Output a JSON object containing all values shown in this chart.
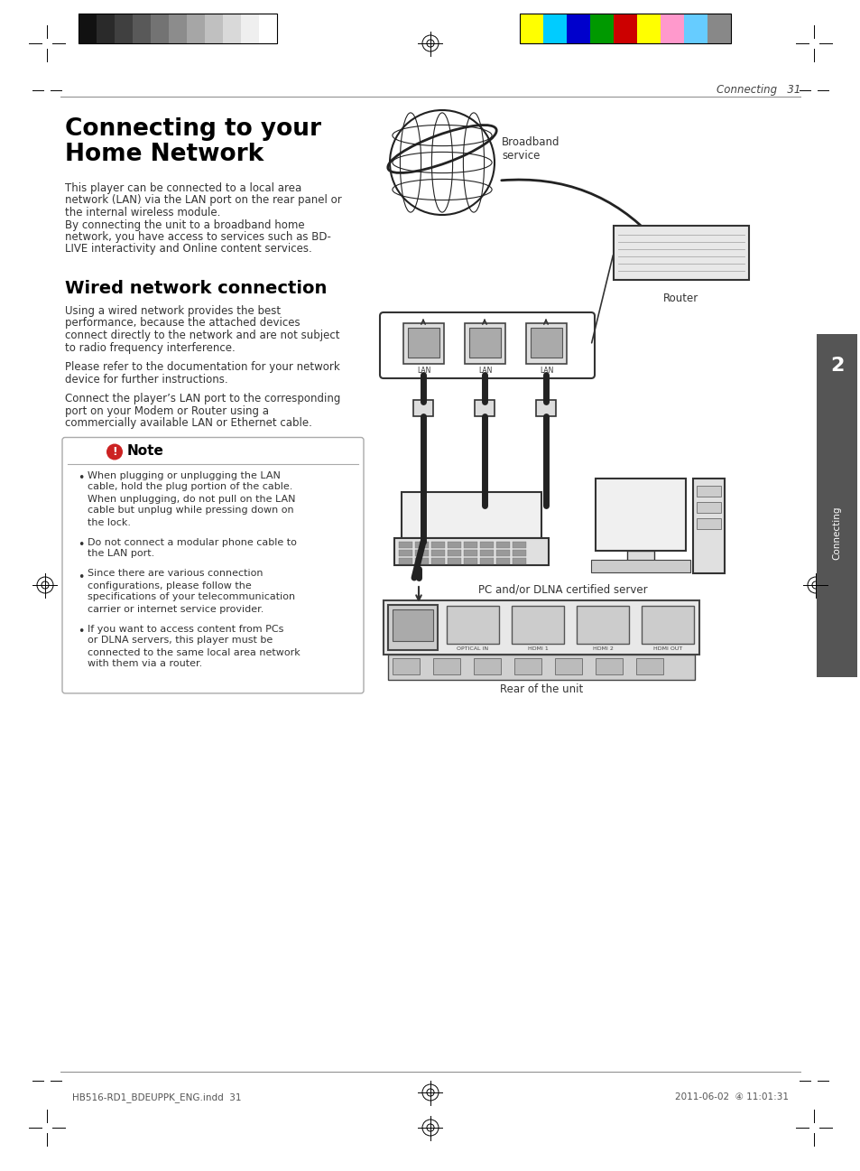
{
  "page_bg": "#ffffff",
  "header_text": "Connecting   31",
  "header_text_color": "#444444",
  "title_line1": "Connecting to your",
  "title_line2": "Home Network",
  "title_color": "#000000",
  "title_fontsize": 19,
  "body_text_color": "#333333",
  "body_fontsize": 8.5,
  "intro_text": "This player can be connected to a local area\nnetwork (LAN) via the LAN port on the rear panel or\nthe internal wireless module.\nBy connecting the unit to a broadband home\nnetwork, you have access to services such as BD-\nLIVE interactivity and Online content services.",
  "section_title": "Wired network connection",
  "section_title_color": "#000000",
  "section_title_fontsize": 14,
  "section_body1": "Using a wired network provides the best\nperformance, because the attached devices\nconnect directly to the network and are not subject\nto radio frequency interference.",
  "section_body2": "Please refer to the documentation for your network\ndevice for further instructions.",
  "section_body3": "Connect the player’s LAN port to the corresponding\nport on your Modem or Router using a\ncommercially available LAN or Ethernet cable.",
  "note_title": "Note",
  "note_bullets": [
    "When plugging or unplugging the LAN\ncable, hold the plug portion of the cable.\nWhen unplugging, do not pull on the LAN\ncable but unplug while pressing down on\nthe lock.",
    "Do not connect a modular phone cable to\nthe LAN port.",
    "Since there are various connection\nconfigurations, please follow the\nspecifications of your telecommunication\ncarrier or internet service provider.",
    "If you want to access content from PCs\nor DLNA servers, this player must be\nconnected to the same local area network\nwith them via a router."
  ],
  "diagram_labels": {
    "broadband": "Broadband\nservice",
    "router": "Router",
    "pc": "PC and/or DLNA certified server",
    "rear": "Rear of the unit"
  },
  "sidebar_color": "#555555",
  "sidebar_text": "Connecting",
  "sidebar_number": "2",
  "footer_left_text": "HB516-RD1_BDEUPPK_ENG.indd  31",
  "footer_right_text": "2011-06-02  ④ 11:01:31",
  "color_bars_left": [
    "#111111",
    "#2a2a2a",
    "#404040",
    "#595959",
    "#737373",
    "#8c8c8c",
    "#a6a6a6",
    "#c0c0c0",
    "#d9d9d9",
    "#efefef",
    "#ffffff"
  ],
  "color_bars_right": [
    "#ffff00",
    "#00ccff",
    "#0000cc",
    "#009900",
    "#cc0000",
    "#ffff00",
    "#ff99cc",
    "#66ccff",
    "#888888"
  ]
}
